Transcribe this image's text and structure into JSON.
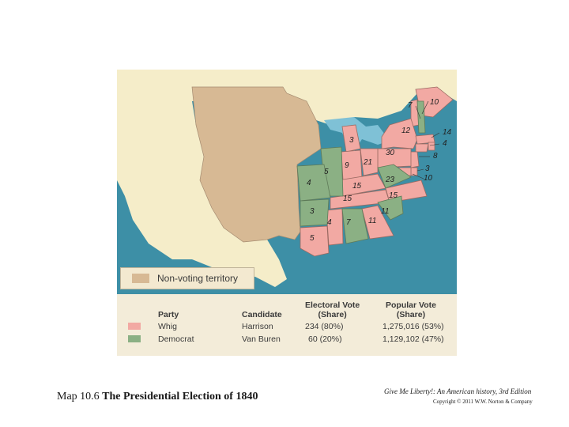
{
  "map": {
    "colors": {
      "ocean": "#3d8fa6",
      "lakes": "#7fc1d6",
      "nonvoting": "#d7b994",
      "foreign": "#f5edc9",
      "whig": "#f2a9a3",
      "democrat": "#8bb084",
      "border": "#8a6a5a"
    },
    "electoral_labels": [
      "7",
      "10",
      "12",
      "14",
      "3",
      "30",
      "4",
      "8",
      "3",
      "10",
      "5",
      "9",
      "21",
      "23",
      "4",
      "15",
      "15",
      "15",
      "3",
      "11",
      "4",
      "7",
      "11",
      "5"
    ]
  },
  "legend": {
    "nonvoting_label": "Non-voting territory"
  },
  "results": {
    "headers": {
      "party": "Party",
      "candidate": "Candidate",
      "electoral": "Electoral Vote\n(Share)",
      "popular": "Popular Vote\n(Share)"
    },
    "rows": [
      {
        "party": "Whig",
        "candidate": "Harrison",
        "electoral": "234 (80%)",
        "popular": "1,275,016 (53%)"
      },
      {
        "party": "Democrat",
        "candidate": "Van Buren",
        "electoral": "60 (20%)",
        "popular": "1,129,102 (47%)"
      }
    ]
  },
  "caption": {
    "prefix": "Map 10.6 ",
    "title": "The Presidential Election of 1840"
  },
  "footer": {
    "book": "Give Me Liberty!: An American history, 3rd Edition",
    "copyright": "Copyright © 2011 W.W. Norton & Company"
  }
}
